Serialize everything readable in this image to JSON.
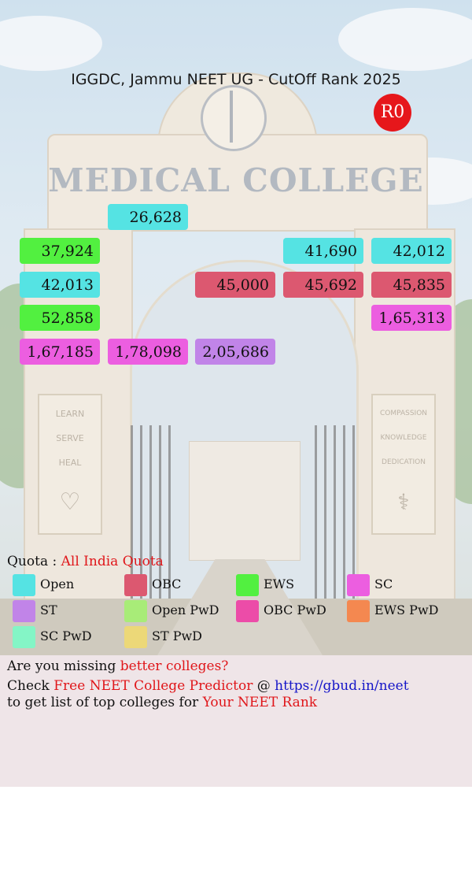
{
  "title": "IGGDC, Jammu NEET UG - CutOff Rank 2025",
  "round": "R0",
  "background": {
    "sign": "MEDICAL COLLEGE",
    "left_plaque": [
      "LEARN",
      "SERVE",
      "HEAL"
    ],
    "right_plaque": [
      "COMPASSION",
      "KNOWLEDGE",
      "DEDICATION"
    ]
  },
  "categories": {
    "Open": "#55e3e3",
    "OBC": "#dc5870",
    "EWS": "#52f040",
    "SC": "#ec5ee0",
    "ST": "#c184e8",
    "Open PwD": "#a8ec78",
    "OBC PwD": "#ec4ca8",
    "EWS PwD": "#f48850",
    "SC PwD": "#84f5c6",
    "ST PwD": "#ecd878"
  },
  "ranks": [
    {
      "value": "26,628",
      "category": "Open"
    },
    {
      "value": "37,924",
      "category": "EWS"
    },
    {
      "value": "41,690",
      "category": "Open"
    },
    {
      "value": "42,012",
      "category": "Open"
    },
    {
      "value": "42,013",
      "category": "Open"
    },
    {
      "value": "45,000",
      "category": "OBC"
    },
    {
      "value": "45,692",
      "category": "OBC"
    },
    {
      "value": "45,835",
      "category": "OBC"
    },
    {
      "value": "52,858",
      "category": "EWS"
    },
    {
      "value": "1,65,313",
      "category": "SC"
    },
    {
      "value": "1,67,185",
      "category": "SC"
    },
    {
      "value": "1,78,098",
      "category": "SC"
    },
    {
      "value": "2,05,686",
      "category": "ST"
    }
  ],
  "quota": {
    "label": "Quota :",
    "value": "All India Quota"
  },
  "legend": [
    {
      "label": "Open",
      "color": "#55e3e3"
    },
    {
      "label": "OBC",
      "color": "#dc5870"
    },
    {
      "label": "EWS",
      "color": "#52f040"
    },
    {
      "label": "SC",
      "color": "#ec5ee0"
    },
    {
      "label": "ST",
      "color": "#c184e8"
    },
    {
      "label": "Open PwD",
      "color": "#a8ec78"
    },
    {
      "label": "OBC PwD",
      "color": "#ec4ca8"
    },
    {
      "label": "EWS PwD",
      "color": "#f48850"
    },
    {
      "label": "SC PwD",
      "color": "#84f5c6"
    },
    {
      "label": "ST PwD",
      "color": "#ecd878"
    }
  ],
  "footer": {
    "line1_a": "Are you missing ",
    "line1_b": "better colleges?",
    "line2_a": "Check ",
    "line2_b": "Free NEET College Predictor",
    "line2_c": " @ ",
    "line2_link": "https://gbud.in/neet",
    "line3_a": "to get list of top colleges for ",
    "line3_b": "Your NEET Rank"
  }
}
